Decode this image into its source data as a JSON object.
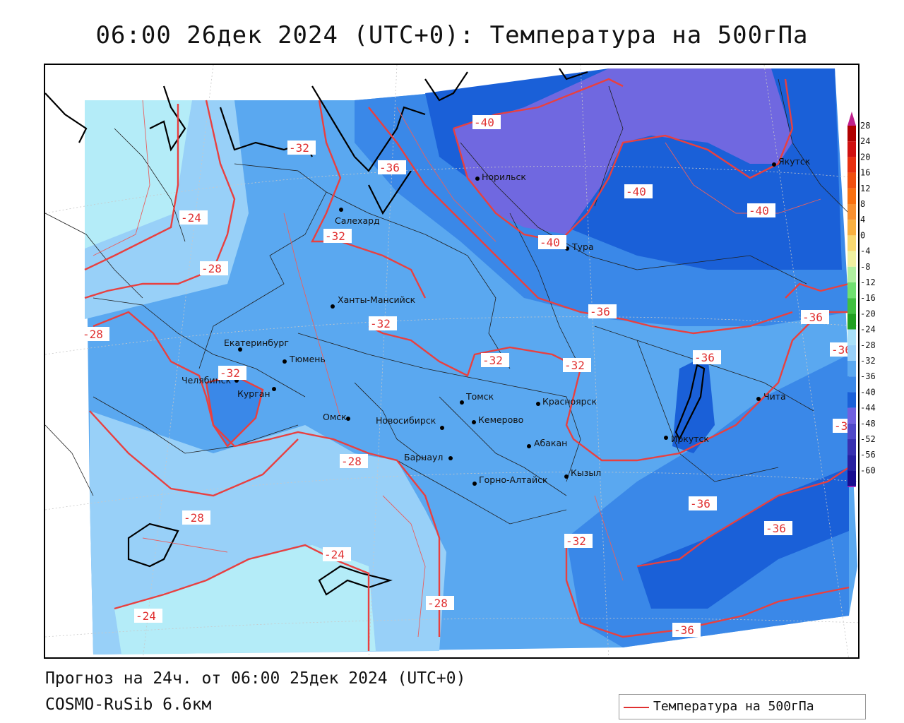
{
  "title": "06:00 26дек 2024 (UTC+0): Температура на 500гПа",
  "footer": {
    "forecast": "Прогноз на 24ч. от 06:00 25дек 2024 (UTC+0)",
    "model": "COSMO-RuSib 6.6км"
  },
  "legend": {
    "label": "Температура на 500гПа",
    "line_color": "#e03030"
  },
  "colorbar": {
    "ticks": [
      "28",
      "24",
      "20",
      "16",
      "12",
      "8",
      "4",
      "0",
      "-4",
      "-8",
      "-12",
      "-16",
      "-20",
      "-24",
      "-28",
      "-32",
      "-36",
      "-40",
      "-44",
      "-48",
      "-52",
      "-56",
      "-60"
    ],
    "colors": [
      "#b00000",
      "#d01010",
      "#e83010",
      "#f05010",
      "#f87010",
      "#f89030",
      "#f8b040",
      "#f8d870",
      "#f0f0a0",
      "#b0f0a0",
      "#70e070",
      "#40c040",
      "#20a020",
      "#a8e0f8",
      "#98d0f8",
      "#5aa8f0",
      "#3a88e8",
      "#1a60d8",
      "#7060e0",
      "#5048c8",
      "#3830b0",
      "#2820a0",
      "#180c90"
    ],
    "top_arrow_color": "#c0208c",
    "bottom_arrow_color": "#c020c0"
  },
  "cities": [
    {
      "name": "Норильск",
      "id": "norilsk"
    },
    {
      "name": "Якутск",
      "id": "yakutsk"
    },
    {
      "name": "Салехард",
      "id": "salekhard"
    },
    {
      "name": "Тура",
      "id": "tura"
    },
    {
      "name": "Ханты-Мансийск",
      "id": "khanty"
    },
    {
      "name": "Екатеринбург",
      "id": "ekb"
    },
    {
      "name": "Тюмень",
      "id": "tyumen"
    },
    {
      "name": "Челябинск",
      "id": "chelyabinsk"
    },
    {
      "name": "Курган",
      "id": "kurgan"
    },
    {
      "name": "Омск",
      "id": "omsk"
    },
    {
      "name": "Новосибирск",
      "id": "novosibirsk"
    },
    {
      "name": "Томск",
      "id": "tomsk"
    },
    {
      "name": "Кемерово",
      "id": "kemerovo"
    },
    {
      "name": "Красноярск",
      "id": "krasnoyarsk"
    },
    {
      "name": "Барнаул",
      "id": "barnaul"
    },
    {
      "name": "Абакан",
      "id": "abakan"
    },
    {
      "name": "Горно-Алтайск",
      "id": "gorno"
    },
    {
      "name": "Кызыл",
      "id": "kyzyl"
    },
    {
      "name": "Иркутск",
      "id": "irkutsk"
    },
    {
      "name": "Чита",
      "id": "chita"
    }
  ],
  "isotherm_labels": [
    "-40",
    "-32",
    "-36",
    "-40",
    "-40",
    "-24",
    "-40",
    "-32",
    "-28",
    "-36",
    "-28",
    "-32",
    "-32",
    "-36",
    "-32",
    "-36",
    "-36",
    "-32",
    "-28",
    "-36",
    "-28",
    "-36",
    "-24",
    "-32",
    "-28",
    "-24",
    "-36"
  ]
}
